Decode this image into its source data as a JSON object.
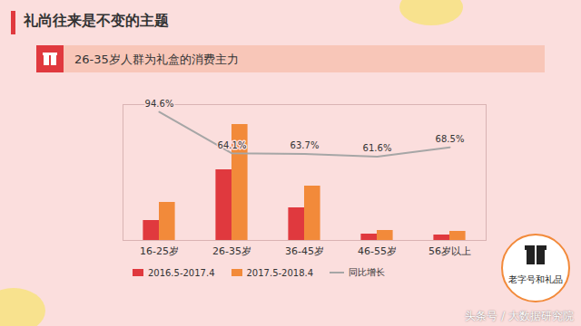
{
  "chart_data": {
    "type": "bar",
    "title": "礼尚往来是不变的主题",
    "subtitle": "26-35岁人群为礼盒的消费主力",
    "categories": [
      "16-25岁",
      "26-35岁",
      "36-45岁",
      "46-55岁",
      "56岁以上"
    ],
    "series": [
      {
        "name": "2016.5-2017.4",
        "type": "bar",
        "color": "#e0393e",
        "values": [
          22,
          78,
          36,
          7,
          6
        ]
      },
      {
        "name": "2017.5-2018.4",
        "type": "bar",
        "color": "#f28a3a",
        "values": [
          42,
          128,
          60,
          11,
          10
        ]
      },
      {
        "name": "同比增长",
        "type": "line",
        "axis": "y2",
        "color": "#a6a6a6",
        "data_labels": true,
        "values": [
          94.6,
          64.1,
          63.7,
          61.6,
          68.5
        ],
        "value_labels": [
          "94.6%",
          "64.1%",
          "63.7%",
          "61.6%",
          "68.5%"
        ]
      }
    ],
    "ylim": [
      0,
      150
    ],
    "yticks": [],
    "y2lim": [
      0,
      100
    ],
    "y2ticks": [],
    "tick_labels": "x",
    "legend": "bottom"
  },
  "badge": "老字号和礼品",
  "watermark": "头条号 / 大数据研究院"
}
